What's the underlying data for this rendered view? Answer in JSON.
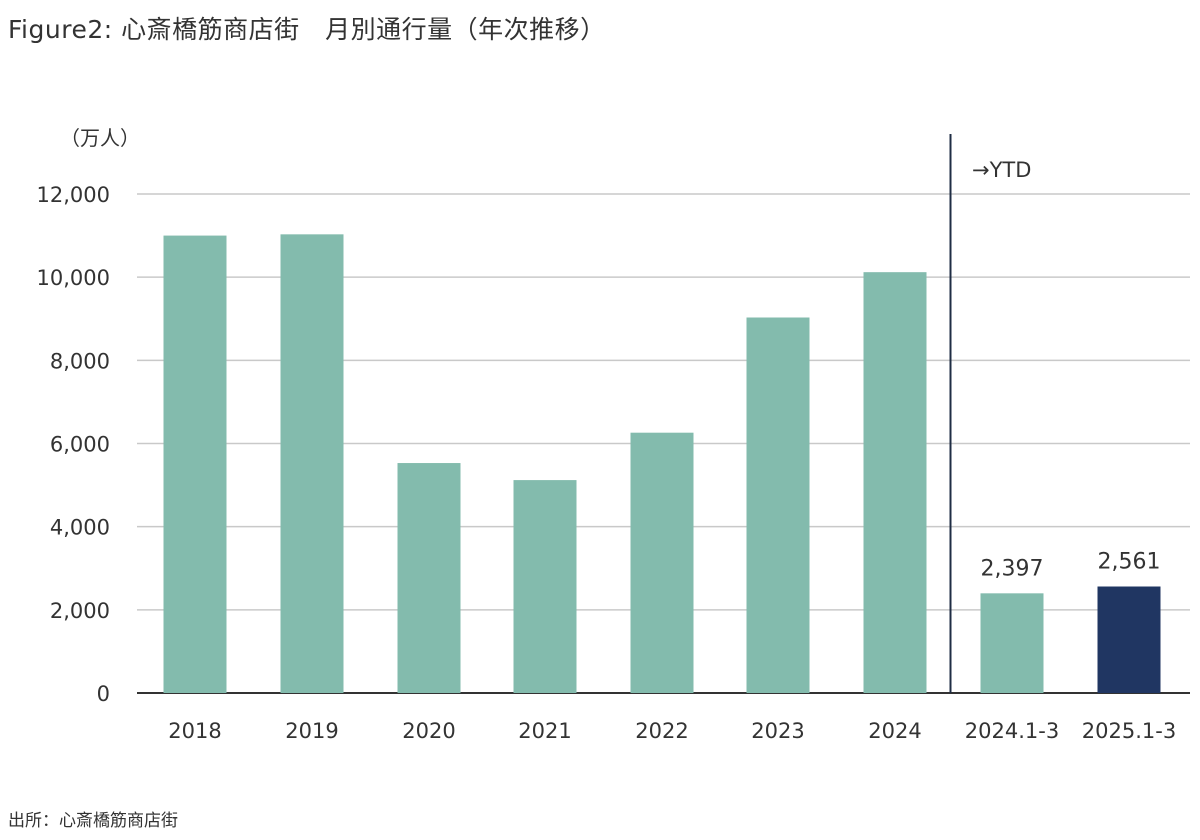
{
  "title": "Figure2: 心斎橋筋商店街　月別通行量（年次推移）",
  "source": "出所：心斎橋筋商店街",
  "colors": {
    "bar": "#83bbad",
    "highlight": "#203662",
    "grid": "#c9c9c9",
    "axis": "#333333",
    "divider": "#1f2d44"
  },
  "chart_data": {
    "type": "bar",
    "title": "Figure2: 心斎橋筋商店街　月別通行量（年次推移）",
    "ylabel": "（万人）",
    "ylim": [
      0,
      12000
    ],
    "yticks": [
      0,
      2000,
      4000,
      6000,
      8000,
      10000,
      12000
    ],
    "ytick_labels": [
      "0",
      "2,000",
      "4,000",
      "6,000",
      "8,000",
      "10,000",
      "12,000"
    ],
    "categories": [
      "2018",
      "2019",
      "2020",
      "2021",
      "2022",
      "2023",
      "2024",
      "2024.1-3",
      "2025.1-3"
    ],
    "values": [
      11000,
      11030,
      5530,
      5120,
      6260,
      9030,
      10120,
      2397,
      2561
    ],
    "data_labels": [
      "",
      "",
      "",
      "",
      "",
      "",
      "",
      "2,397",
      "2,561"
    ],
    "highlight": [
      false,
      false,
      false,
      false,
      false,
      false,
      false,
      false,
      true
    ],
    "annotation": "→YTD",
    "divider_after_index": 6,
    "grid": true
  }
}
